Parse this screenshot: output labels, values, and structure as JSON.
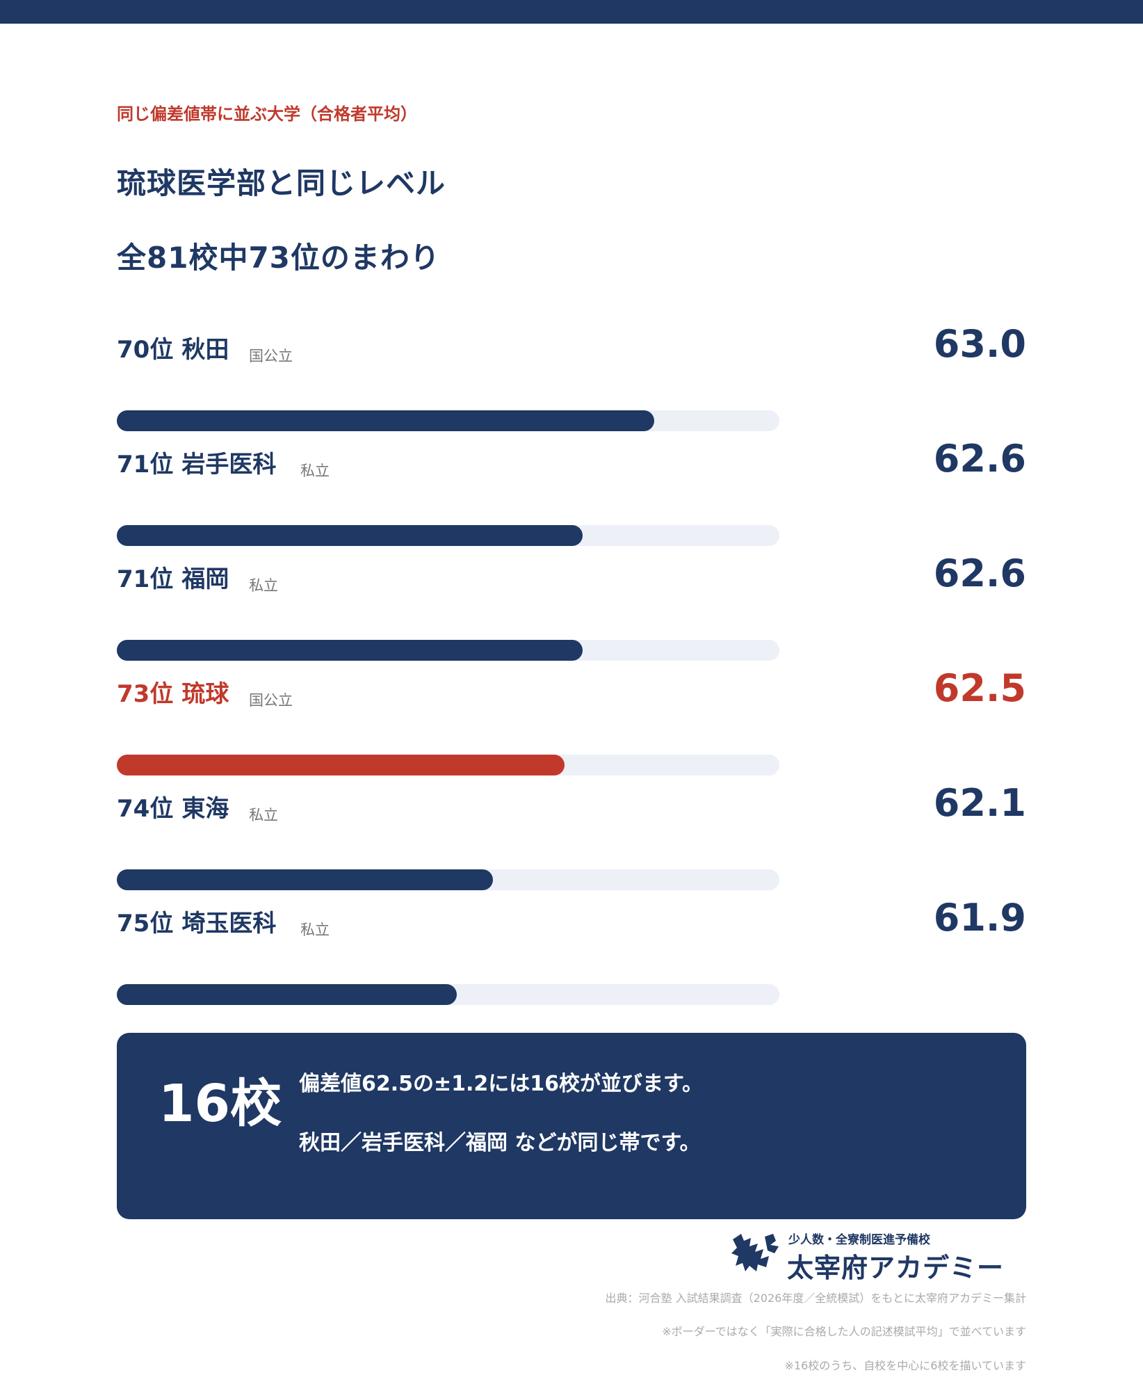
{
  "colors": {
    "accent": "#c0392b",
    "primary": "#1f3864",
    "track": "#edf0f7"
  },
  "header": {
    "eyebrow": "同じ偏差値帯に並ぶ大学（合格者平均）",
    "title_line1": "琉球医学部と同じレベル",
    "title_line2": "全81校中73位のまわり"
  },
  "chart_data": {
    "type": "bar",
    "orientation": "horizontal",
    "title": "琉球医学部と同じレベル",
    "categories": [
      "70位 秋田",
      "71位 岩手医科",
      "71位 福岡",
      "73位 琉球",
      "74位 東海",
      "75位 埼玉医科"
    ],
    "values": [
      63.0,
      62.6,
      62.6,
      62.5,
      62.1,
      61.9
    ],
    "xlim": [
      60.0,
      63.7
    ],
    "highlight_index": 3,
    "rows": [
      {
        "rank": "70位",
        "name": "秋田",
        "type": "国公立",
        "value": "63.0",
        "highlight": false
      },
      {
        "rank": "71位",
        "name": "岩手医科",
        "type": "私立",
        "value": "62.6",
        "highlight": false
      },
      {
        "rank": "71位",
        "name": "福岡",
        "type": "私立",
        "value": "62.6",
        "highlight": false
      },
      {
        "rank": "73位",
        "name": "琉球",
        "type": "国公立",
        "value": "62.5",
        "highlight": true
      },
      {
        "rank": "74位",
        "name": "東海",
        "type": "私立",
        "value": "62.1",
        "highlight": false
      },
      {
        "rank": "75位",
        "name": "埼玉医科",
        "type": "私立",
        "value": "61.9",
        "highlight": false
      }
    ]
  },
  "summary": {
    "count": "16校",
    "line1": "偏差値62.5の±1.2には16校が並びます。",
    "line2": "秋田／岩手医科／福岡 などが同じ帯です。"
  },
  "logo": {
    "sub": "少人数・全寮制医進予備校",
    "main": "太宰府アカデミー"
  },
  "notes": {
    "source": "出典：河合塾 入試結果調査（2026年度／全統模試）をもとに太宰府アカデミー集計",
    "note1": "※ボーダーではなく「実際に合格した人の記述模試平均」で並べています",
    "note2": "※16校のうち、自校を中心に6校を描いています"
  }
}
